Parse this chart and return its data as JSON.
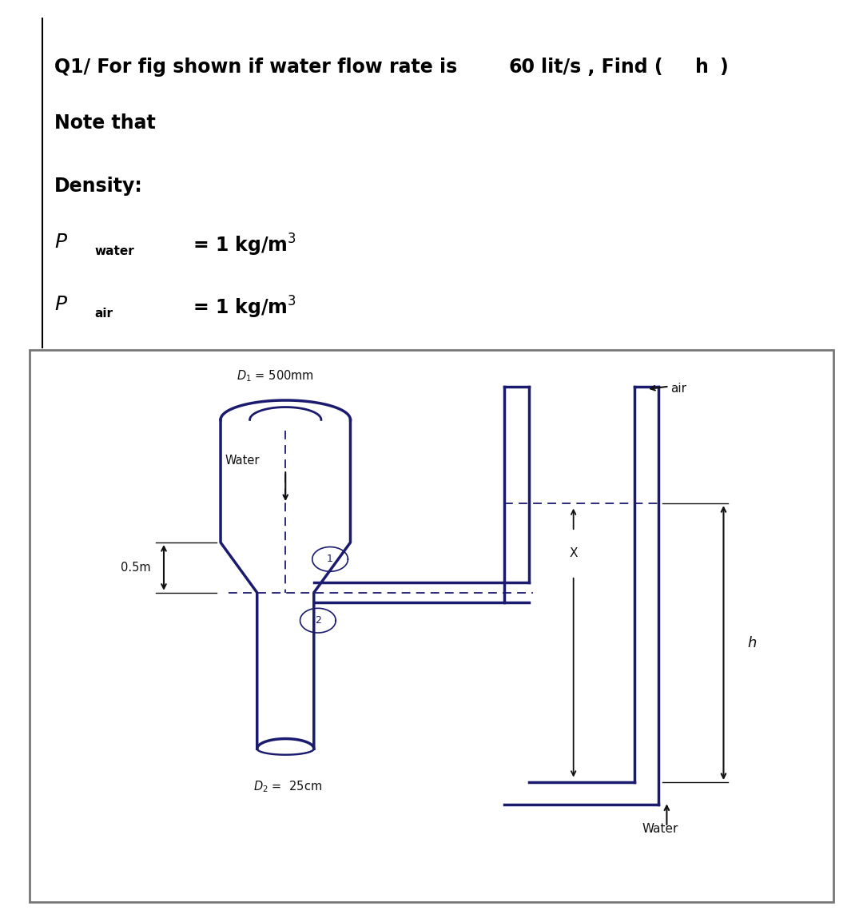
{
  "bg_color": "#ffffff",
  "photo_bg": "#c8c4b8",
  "ink": "#1a1a6e",
  "black": "#111111",
  "title_normal": "Q1/ For fig shown if water flow rate is ",
  "title_bold_num": "60",
  "title_normal2": "lit/s , Find (",
  "title_bold_h": "h",
  "title_close": ")",
  "line2": "Note that",
  "line3": "Density:",
  "d1_label": "D₁ = 500mm",
  "air_label": "air",
  "water_left_label": "Water",
  "water_right_label": "Water",
  "zero_five": "0.5m",
  "d2_label": "D₂ =  25cm",
  "h_label": "h",
  "x_label": "X"
}
